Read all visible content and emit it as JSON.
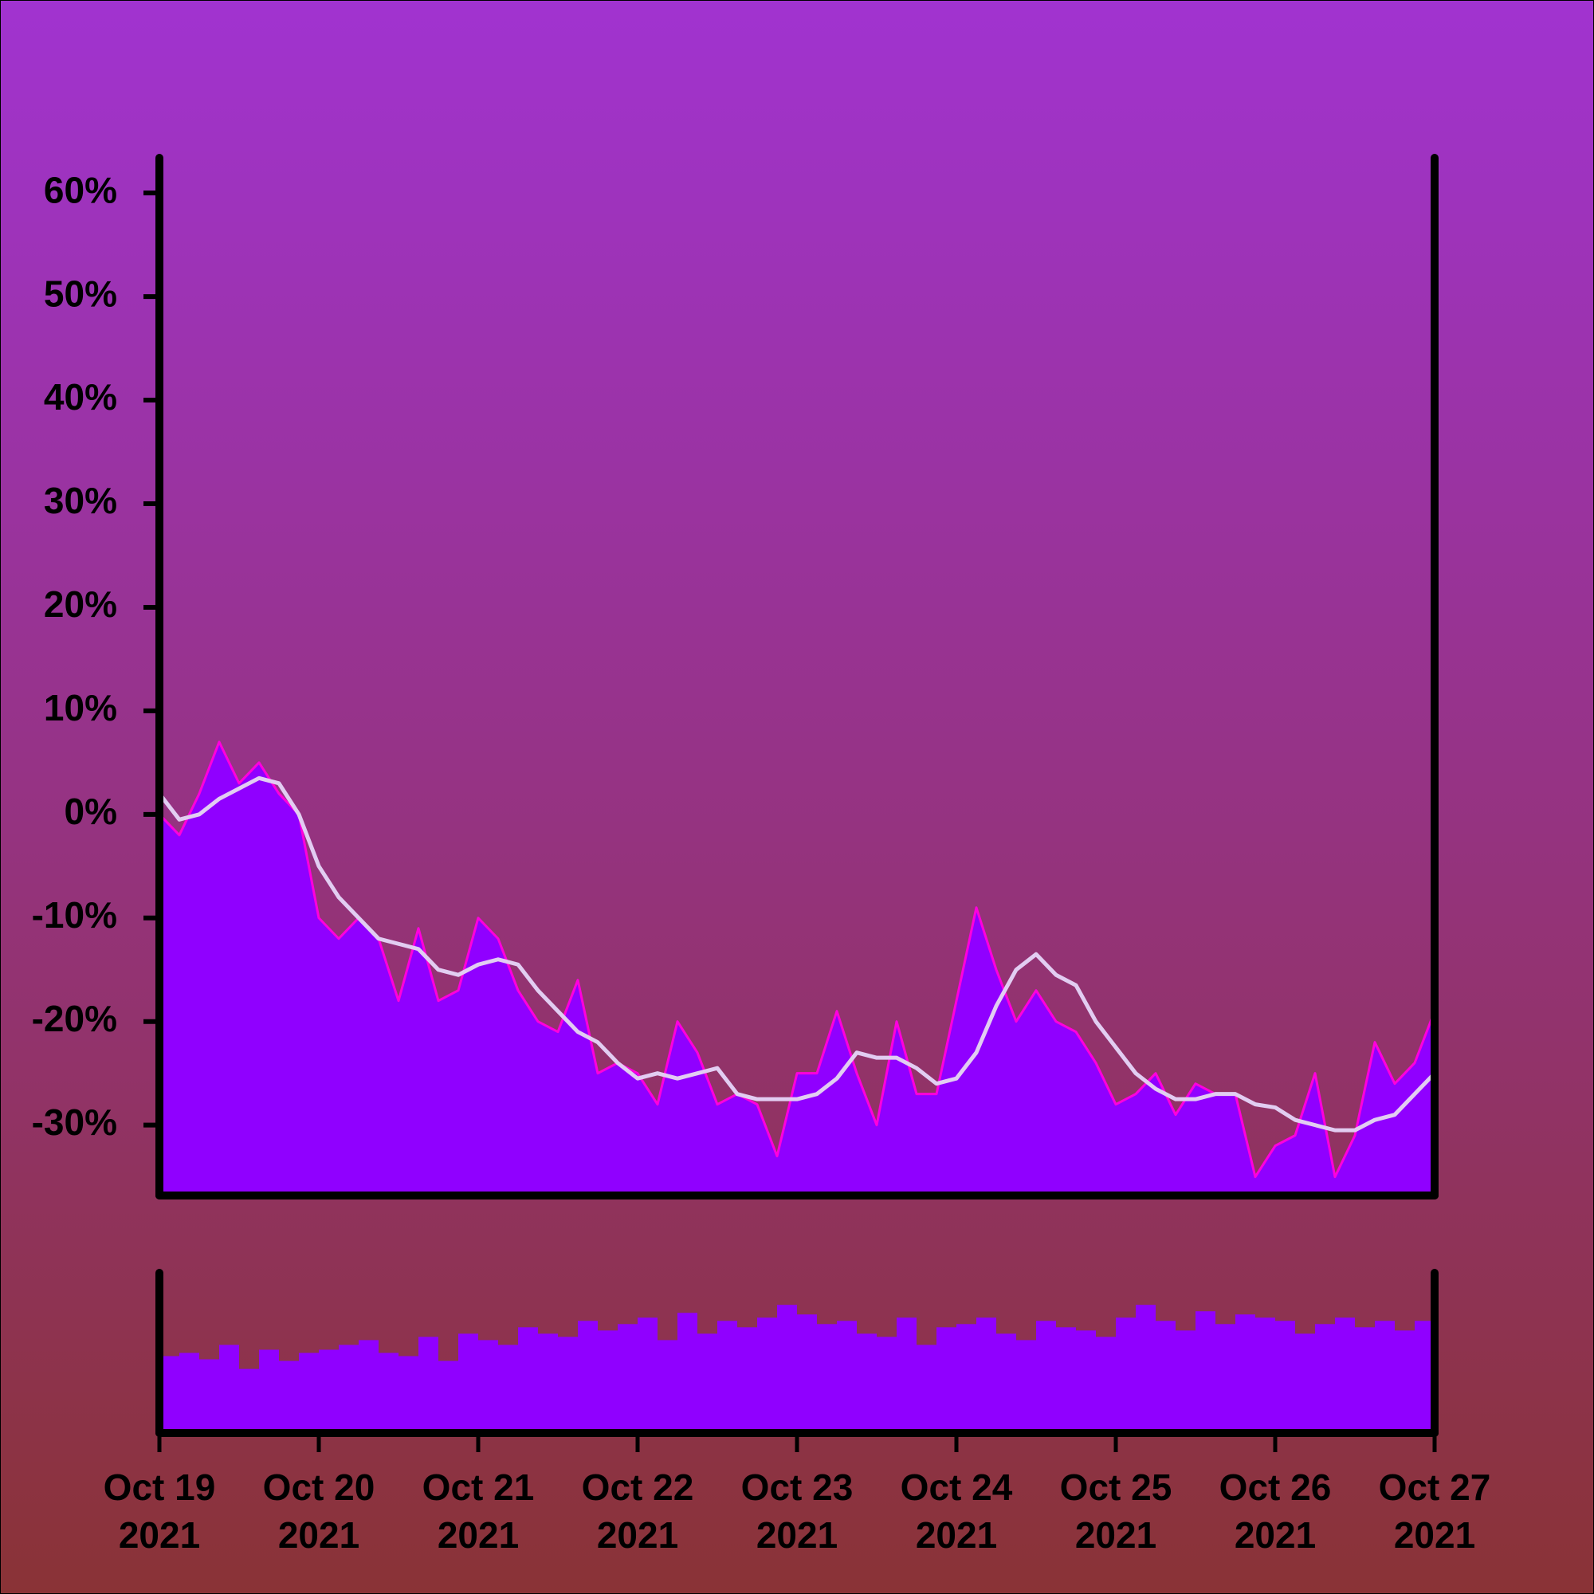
{
  "chart_data": [
    {
      "type": "area",
      "x": [
        "2021-10-19T00:00",
        "2021-10-19T03:00",
        "2021-10-19T06:00",
        "2021-10-19T09:00",
        "2021-10-19T12:00",
        "2021-10-19T15:00",
        "2021-10-19T18:00",
        "2021-10-19T21:00",
        "2021-10-20T00:00",
        "2021-10-20T03:00",
        "2021-10-20T06:00",
        "2021-10-20T09:00",
        "2021-10-20T12:00",
        "2021-10-20T15:00",
        "2021-10-20T18:00",
        "2021-10-20T21:00",
        "2021-10-21T00:00",
        "2021-10-21T03:00",
        "2021-10-21T06:00",
        "2021-10-21T09:00",
        "2021-10-21T12:00",
        "2021-10-21T15:00",
        "2021-10-21T18:00",
        "2021-10-21T21:00",
        "2021-10-22T00:00",
        "2021-10-22T03:00",
        "2021-10-22T06:00",
        "2021-10-22T09:00",
        "2021-10-22T12:00",
        "2021-10-22T15:00",
        "2021-10-22T18:00",
        "2021-10-22T21:00",
        "2021-10-23T00:00",
        "2021-10-23T03:00",
        "2021-10-23T06:00",
        "2021-10-23T09:00",
        "2021-10-23T12:00",
        "2021-10-23T15:00",
        "2021-10-23T18:00",
        "2021-10-23T21:00",
        "2021-10-24T00:00",
        "2021-10-24T03:00",
        "2021-10-24T06:00",
        "2021-10-24T09:00",
        "2021-10-24T12:00",
        "2021-10-24T15:00",
        "2021-10-24T18:00",
        "2021-10-24T21:00",
        "2021-10-25T00:00",
        "2021-10-25T03:00",
        "2021-10-25T06:00",
        "2021-10-25T09:00",
        "2021-10-25T12:00",
        "2021-10-25T15:00",
        "2021-10-25T18:00",
        "2021-10-25T21:00",
        "2021-10-26T00:00",
        "2021-10-26T03:00",
        "2021-10-26T06:00",
        "2021-10-26T09:00",
        "2021-10-26T12:00",
        "2021-10-26T15:00",
        "2021-10-26T18:00",
        "2021-10-26T21:00",
        "2021-10-27T00:00"
      ],
      "series": [
        {
          "color": "#ff00dd",
          "fill": "#9000ff",
          "values": [
            0,
            -2,
            2,
            7,
            3,
            5,
            2,
            0,
            -10,
            -12,
            -10,
            -12,
            -18,
            -11,
            -18,
            -17,
            -10,
            -12,
            -17,
            -20,
            -21,
            -16,
            -25,
            -24,
            -25,
            -28,
            -20,
            -23,
            -28,
            -27,
            -28,
            -33,
            -25,
            -25,
            -19,
            -25,
            -30,
            -20,
            -27,
            -27,
            -18,
            -9,
            -15,
            -20,
            -17,
            -20,
            -21,
            -24,
            -28,
            -27,
            -25,
            -29,
            -26,
            -27,
            -27,
            -35,
            -32,
            -31,
            -25,
            -35,
            -31,
            -22,
            -26,
            -24,
            -19
          ]
        },
        {
          "color": "#e2cdf2",
          "values": [
            2,
            -0.5,
            0,
            1.5,
            2.5,
            3.5,
            3,
            0,
            -5,
            -8,
            -10,
            -12,
            -12.5,
            -13,
            -15,
            -15.5,
            -14.5,
            -14,
            -14.5,
            -17,
            -19,
            -21,
            -22,
            -24,
            -25.5,
            -25,
            -25.5,
            -25,
            -24.5,
            -27,
            -27.5,
            -27.5,
            -27.5,
            -27,
            -25.5,
            -23,
            -23.5,
            -23.5,
            -24.5,
            -26,
            -25.5,
            -23,
            -18.5,
            -15,
            -13.5,
            -15.5,
            -16.5,
            -20,
            -22.5,
            -25,
            -26.5,
            -27.5,
            -27.5,
            -27,
            -27,
            -28,
            -28.3,
            -29.5,
            -30,
            -30.5,
            -30.5,
            -29.5,
            -29,
            -27,
            -25
          ]
        }
      ],
      "xlim": [
        "2021-10-19T00:00",
        "2021-10-27T00:00"
      ],
      "ylim": [
        -36.8,
        63.4
      ],
      "yticks": [
        {
          "value": -30,
          "label": "-30%"
        },
        {
          "value": -20,
          "label": "-20%"
        },
        {
          "value": -10,
          "label": "-10%"
        },
        {
          "value": 0,
          "label": "0%"
        },
        {
          "value": 10,
          "label": "10%"
        },
        {
          "value": 20,
          "label": "20%"
        },
        {
          "value": 30,
          "label": "30%"
        },
        {
          "value": 40,
          "label": "40%"
        },
        {
          "value": 50,
          "label": "50%"
        },
        {
          "value": 60,
          "label": "60%"
        }
      ]
    },
    {
      "type": "bar",
      "x": [
        "2021-10-19T00:00",
        "2021-10-19T03:00",
        "2021-10-19T06:00",
        "2021-10-19T09:00",
        "2021-10-19T12:00",
        "2021-10-19T15:00",
        "2021-10-19T18:00",
        "2021-10-19T21:00",
        "2021-10-20T00:00",
        "2021-10-20T03:00",
        "2021-10-20T06:00",
        "2021-10-20T09:00",
        "2021-10-20T12:00",
        "2021-10-20T15:00",
        "2021-10-20T18:00",
        "2021-10-20T21:00",
        "2021-10-21T00:00",
        "2021-10-21T03:00",
        "2021-10-21T06:00",
        "2021-10-21T09:00",
        "2021-10-21T12:00",
        "2021-10-21T15:00",
        "2021-10-21T18:00",
        "2021-10-21T21:00",
        "2021-10-22T00:00",
        "2021-10-22T03:00",
        "2021-10-22T06:00",
        "2021-10-22T09:00",
        "2021-10-22T12:00",
        "2021-10-22T15:00",
        "2021-10-22T18:00",
        "2021-10-22T21:00",
        "2021-10-23T00:00",
        "2021-10-23T03:00",
        "2021-10-23T06:00",
        "2021-10-23T09:00",
        "2021-10-23T12:00",
        "2021-10-23T15:00",
        "2021-10-23T18:00",
        "2021-10-23T21:00",
        "2021-10-24T00:00",
        "2021-10-24T03:00",
        "2021-10-24T06:00",
        "2021-10-24T09:00",
        "2021-10-24T12:00",
        "2021-10-24T15:00",
        "2021-10-24T18:00",
        "2021-10-24T21:00",
        "2021-10-25T00:00",
        "2021-10-25T03:00",
        "2021-10-25T06:00",
        "2021-10-25T09:00",
        "2021-10-25T12:00",
        "2021-10-25T15:00",
        "2021-10-25T18:00",
        "2021-10-25T21:00",
        "2021-10-26T00:00",
        "2021-10-26T03:00",
        "2021-10-26T06:00",
        "2021-10-26T09:00",
        "2021-10-26T12:00",
        "2021-10-26T15:00",
        "2021-10-26T18:00",
        "2021-10-26T21:00"
      ],
      "values": [
        48,
        50,
        46,
        55,
        40,
        52,
        45,
        50,
        52,
        55,
        58,
        50,
        48,
        60,
        45,
        62,
        58,
        55,
        66,
        62,
        60,
        70,
        64,
        68,
        72,
        58,
        75,
        62,
        70,
        66,
        72,
        80,
        74,
        68,
        70,
        62,
        60,
        72,
        55,
        66,
        68,
        72,
        62,
        58,
        70,
        66,
        64,
        60,
        72,
        80,
        70,
        64,
        76,
        68,
        74,
        72,
        70,
        62,
        68,
        72,
        66,
        70,
        64,
        70
      ],
      "color": "#9000ff",
      "xlim": [
        "2021-10-19T00:00",
        "2021-10-27T00:00"
      ],
      "ylim": [
        0,
        100
      ],
      "xticks": [
        {
          "value": "2021-10-19T00:00",
          "label": "Oct 19 2021"
        },
        {
          "value": "2021-10-20T00:00",
          "label": "Oct 20 2021"
        },
        {
          "value": "2021-10-21T00:00",
          "label": "Oct 21 2021"
        },
        {
          "value": "2021-10-22T00:00",
          "label": "Oct 22 2021"
        },
        {
          "value": "2021-10-23T00:00",
          "label": "Oct 23 2021"
        },
        {
          "value": "2021-10-24T00:00",
          "label": "Oct 24 2021"
        },
        {
          "value": "2021-10-25T00:00",
          "label": "Oct 25 2021"
        },
        {
          "value": "2021-10-26T00:00",
          "label": "Oct 26 2021"
        },
        {
          "value": "2021-10-27T00:00",
          "label": "Oct 27 2021"
        }
      ]
    }
  ]
}
